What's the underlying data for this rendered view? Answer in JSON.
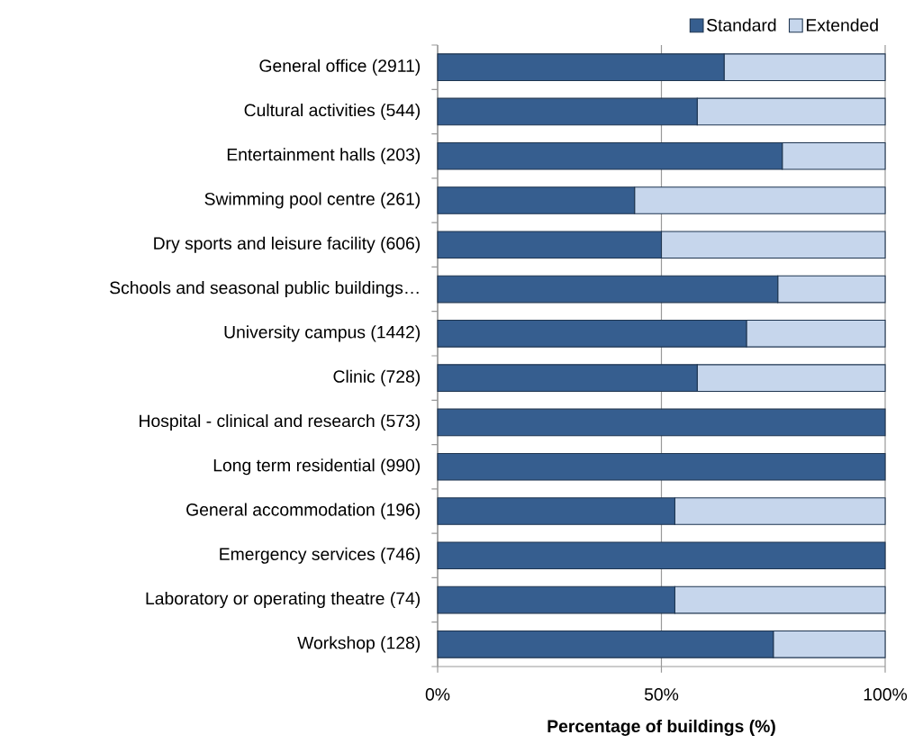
{
  "chart_data": {
    "type": "bar",
    "orientation": "horizontal",
    "stacked": true,
    "xlabel": "Percentage of buildings (%)",
    "categories": [
      "General office (2911)",
      "Cultural activities (544)",
      "Entertainment halls (203)",
      "Swimming pool centre (261)",
      "Dry sports and leisure facility (606)",
      "Schools and seasonal public buildings…",
      "University campus (1442)",
      "Clinic (728)",
      "Hospital - clinical and research (573)",
      "Long term residential (990)",
      "General accommodation (196)",
      "Emergency services (746)",
      "Laboratory or operating theatre (74)",
      "Workshop (128)"
    ],
    "series": [
      {
        "name": "Standard",
        "color": "#365e8f",
        "values": [
          64,
          58,
          77,
          44,
          50,
          76,
          69,
          58,
          100,
          100,
          53,
          100,
          53,
          75
        ]
      },
      {
        "name": "Extended",
        "color": "#c6d6ec",
        "values": [
          36,
          42,
          23,
          56,
          50,
          24,
          31,
          42,
          0,
          0,
          47,
          0,
          47,
          25
        ]
      }
    ],
    "xlim": [
      0,
      100
    ],
    "xticks": [
      {
        "value": 0,
        "label": "0%"
      },
      {
        "value": 50,
        "label": "50%"
      },
      {
        "value": 100,
        "label": "100%"
      }
    ],
    "grid": "x",
    "legend": "top right"
  }
}
